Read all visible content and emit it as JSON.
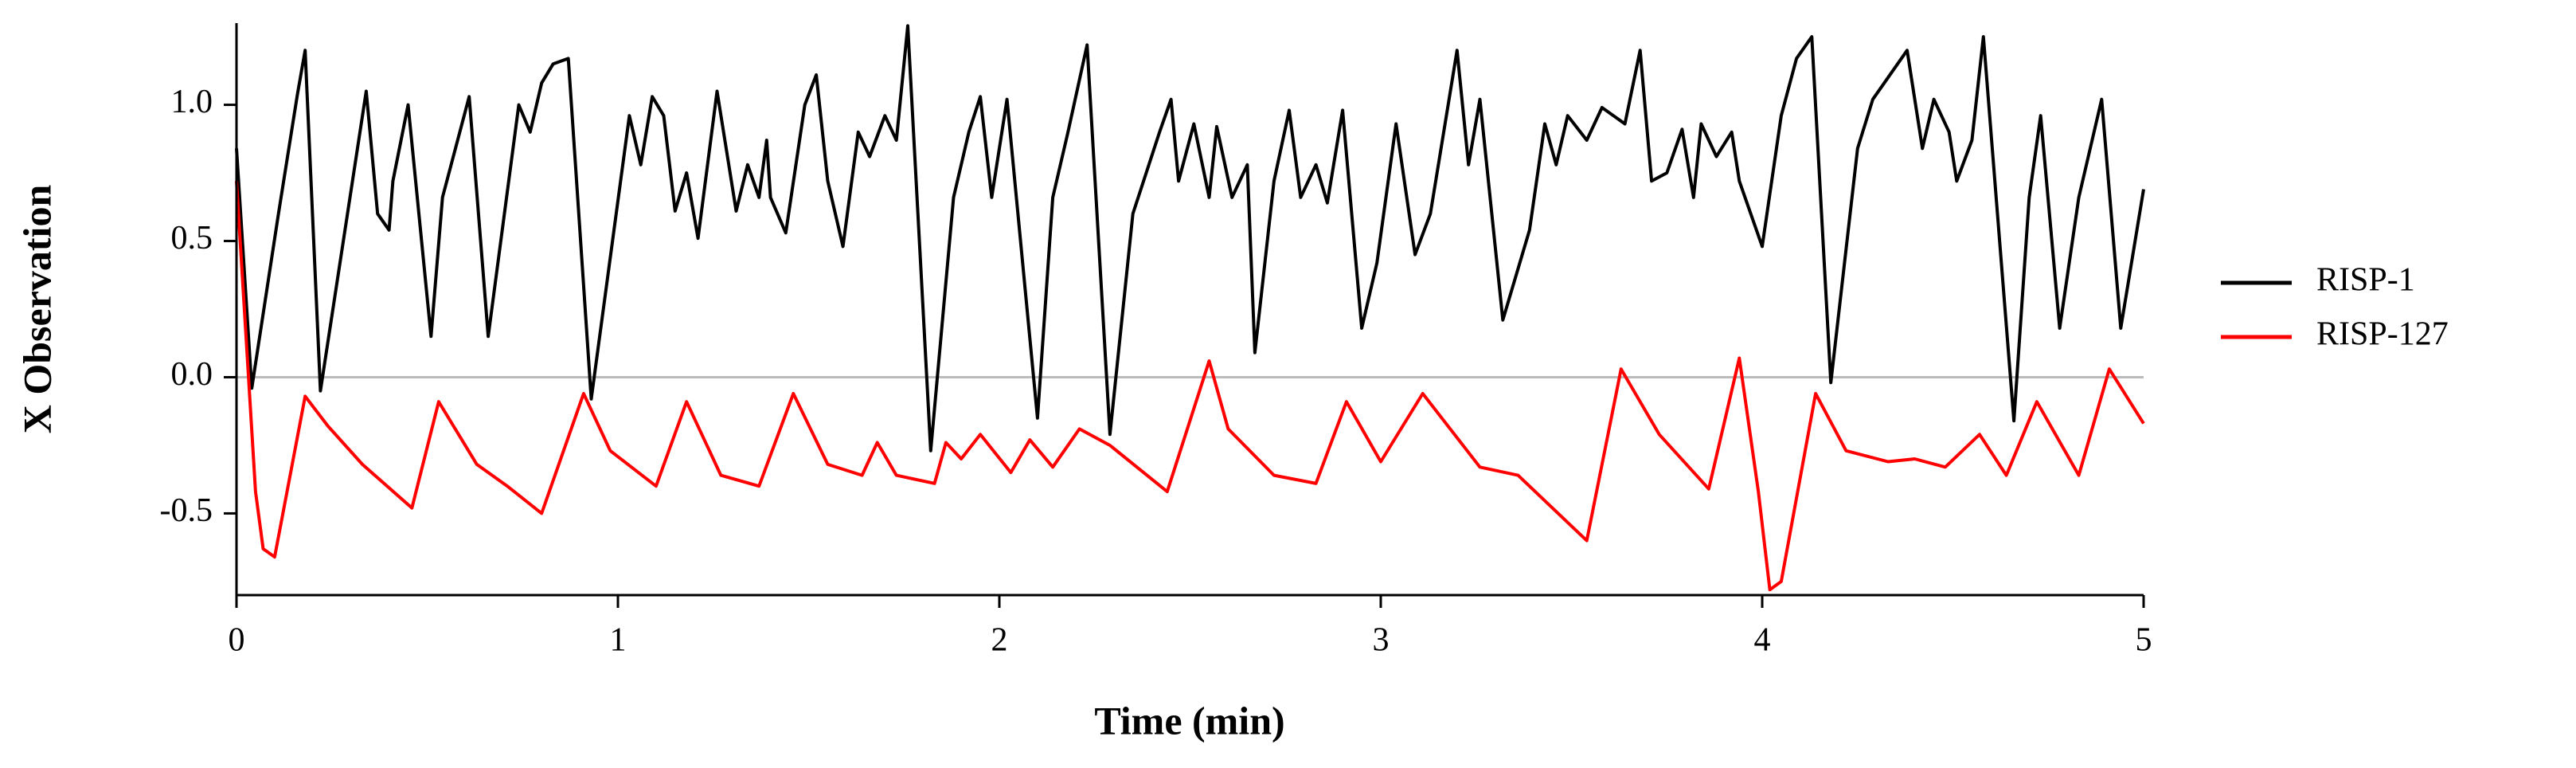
{
  "chart_data": {
    "type": "line",
    "xlabel": "Time (min)",
    "ylabel": "X Observation",
    "xlim": [
      0,
      5
    ],
    "xticks": [
      0,
      1,
      2,
      3,
      4,
      5
    ],
    "ylim": [
      -0.8,
      1.3
    ],
    "yticks": [
      {
        "value": 1.0,
        "label": "1.0"
      },
      0.5,
      {
        "value": 0.0,
        "label": "0.0"
      },
      -0.5
    ],
    "zero_line": true,
    "legend": "right",
    "series": [
      {
        "name": "RISP-1",
        "color": "#000000",
        "x": [
          0.0,
          0.04,
          0.11,
          0.16,
          0.18,
          0.22,
          0.34,
          0.37,
          0.4,
          0.41,
          0.45,
          0.51,
          0.54,
          0.61,
          0.66,
          0.74,
          0.77,
          0.8,
          0.83,
          0.87,
          0.93,
          1.03,
          1.06,
          1.09,
          1.12,
          1.15,
          1.18,
          1.21,
          1.26,
          1.31,
          1.34,
          1.37,
          1.39,
          1.4,
          1.44,
          1.49,
          1.52,
          1.55,
          1.59,
          1.63,
          1.66,
          1.7,
          1.73,
          1.76,
          1.82,
          1.88,
          1.92,
          1.95,
          1.98,
          2.02,
          2.1,
          2.14,
          2.18,
          2.23,
          2.29,
          2.35,
          2.42,
          2.45,
          2.47,
          2.51,
          2.55,
          2.57,
          2.61,
          2.65,
          2.67,
          2.72,
          2.76,
          2.79,
          2.83,
          2.86,
          2.9,
          2.95,
          2.99,
          3.04,
          3.09,
          3.13,
          3.2,
          3.23,
          3.26,
          3.32,
          3.39,
          3.43,
          3.46,
          3.49,
          3.54,
          3.58,
          3.64,
          3.68,
          3.71,
          3.75,
          3.79,
          3.82,
          3.84,
          3.88,
          3.92,
          3.94,
          4.0,
          4.05,
          4.09,
          4.13,
          4.18,
          4.25,
          4.29,
          4.38,
          4.42,
          4.45,
          4.49,
          4.51,
          4.55,
          4.58,
          4.66,
          4.7,
          4.73,
          4.78,
          4.83,
          4.89,
          4.94,
          5.0
        ],
        "values": [
          0.84,
          -0.04,
          0.6,
          1.04,
          1.2,
          -0.05,
          1.05,
          0.6,
          0.54,
          0.72,
          1.0,
          0.15,
          0.66,
          1.03,
          0.15,
          1.0,
          0.9,
          1.08,
          1.15,
          1.17,
          -0.08,
          0.96,
          0.78,
          1.03,
          0.96,
          0.61,
          0.75,
          0.51,
          1.05,
          0.61,
          0.78,
          0.66,
          0.87,
          0.66,
          0.53,
          1.0,
          1.11,
          0.72,
          0.48,
          0.9,
          0.81,
          0.96,
          0.87,
          1.29,
          -0.27,
          0.66,
          0.9,
          1.03,
          0.66,
          1.02,
          -0.15,
          0.66,
          0.9,
          1.22,
          -0.21,
          0.6,
          0.9,
          1.02,
          0.72,
          0.93,
          0.66,
          0.92,
          0.66,
          0.78,
          0.09,
          0.72,
          0.98,
          0.66,
          0.78,
          0.64,
          0.98,
          0.18,
          0.42,
          0.93,
          0.45,
          0.6,
          1.2,
          0.78,
          1.02,
          0.21,
          0.54,
          0.93,
          0.78,
          0.96,
          0.87,
          0.99,
          0.93,
          1.2,
          0.72,
          0.75,
          0.91,
          0.66,
          0.93,
          0.81,
          0.9,
          0.72,
          0.48,
          0.96,
          1.17,
          1.25,
          -0.02,
          0.84,
          1.02,
          1.2,
          0.84,
          1.02,
          0.9,
          0.72,
          0.87,
          1.25,
          -0.16,
          0.66,
          0.96,
          0.18,
          0.66,
          1.02,
          0.18,
          0.69
        ]
      },
      {
        "name": "RISP-127",
        "color": "#ff0000",
        "x": [
          0.0,
          0.05,
          0.07,
          0.1,
          0.18,
          0.24,
          0.33,
          0.46,
          0.53,
          0.63,
          0.71,
          0.8,
          0.91,
          0.98,
          1.1,
          1.18,
          1.27,
          1.37,
          1.46,
          1.55,
          1.64,
          1.68,
          1.73,
          1.83,
          1.86,
          1.9,
          1.95,
          2.03,
          2.08,
          2.14,
          2.21,
          2.29,
          2.44,
          2.55,
          2.6,
          2.72,
          2.83,
          2.91,
          3.0,
          3.11,
          3.26,
          3.36,
          3.54,
          3.63,
          3.73,
          3.86,
          3.94,
          3.99,
          4.02,
          4.05,
          4.14,
          4.22,
          4.33,
          4.4,
          4.48,
          4.57,
          4.64,
          4.72,
          4.83,
          4.91,
          5.0
        ],
        "values": [
          0.72,
          -0.42,
          -0.63,
          -0.66,
          -0.07,
          -0.18,
          -0.32,
          -0.48,
          -0.09,
          -0.32,
          -0.4,
          -0.5,
          -0.06,
          -0.27,
          -0.4,
          -0.09,
          -0.36,
          -0.4,
          -0.06,
          -0.32,
          -0.36,
          -0.24,
          -0.36,
          -0.39,
          -0.24,
          -0.3,
          -0.21,
          -0.35,
          -0.23,
          -0.33,
          -0.19,
          -0.25,
          -0.42,
          0.06,
          -0.19,
          -0.36,
          -0.39,
          -0.09,
          -0.31,
          -0.06,
          -0.33,
          -0.36,
          -0.6,
          0.03,
          -0.21,
          -0.41,
          0.07,
          -0.42,
          -0.78,
          -0.75,
          -0.06,
          -0.27,
          -0.31,
          -0.3,
          -0.33,
          -0.21,
          -0.36,
          -0.09,
          -0.36,
          0.03,
          -0.17
        ]
      }
    ]
  }
}
